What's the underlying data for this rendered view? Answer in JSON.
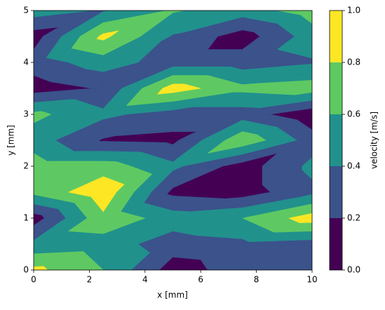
{
  "chart_data": {
    "type": "contour",
    "xlabel": "x [mm]",
    "ylabel": "y [mm]",
    "colorbar_label": "velocity [m/s]",
    "x": [
      0,
      2.5,
      5,
      7.5,
      10
    ],
    "y": [
      0,
      0.5,
      1,
      1.5,
      2,
      2.5,
      3,
      3.5,
      4,
      4.5,
      5
    ],
    "z": [
      [
        0.85,
        0.6,
        0.1,
        0.3,
        0.35
      ],
      [
        0.45,
        0.5,
        0.3,
        0.35,
        0.3
      ],
      [
        0.1,
        0.75,
        0.5,
        0.6,
        0.9
      ],
      [
        0.65,
        0.95,
        0.15,
        0.1,
        0.35
      ],
      [
        0.7,
        0.7,
        0.45,
        0.1,
        0.45
      ],
      [
        0.5,
        0.18,
        0.15,
        0.75,
        0.3
      ],
      [
        0.65,
        0.45,
        0.3,
        0.3,
        0.05
      ],
      [
        0.1,
        0.22,
        0.9,
        0.65,
        0.7
      ],
      [
        0.3,
        0.5,
        0.3,
        0.3,
        0.38
      ],
      [
        0.1,
        0.85,
        0.38,
        0.1,
        0.5
      ],
      [
        0.5,
        0.38,
        0.62,
        0.5,
        0.7
      ]
    ],
    "colors": [
      "#440154",
      "#3b528b",
      "#21918c",
      "#5ec962",
      "#fde725"
    ],
    "xlim": [
      0,
      10
    ],
    "ylim": [
      0,
      5
    ],
    "xticks": [
      0,
      2,
      4,
      6,
      8,
      10
    ],
    "yticks": [
      0,
      1,
      2,
      3,
      4,
      5
    ],
    "cticks": [
      {
        "value": 0,
        "label": "0.0"
      },
      {
        "value": 0.2,
        "label": "0.2"
      },
      {
        "value": 0.4,
        "label": "0.4"
      },
      {
        "value": 0.6,
        "label": "0.6"
      },
      {
        "value": 0.8,
        "label": "0.8"
      },
      {
        "value": 1,
        "label": "1.0"
      }
    ]
  }
}
